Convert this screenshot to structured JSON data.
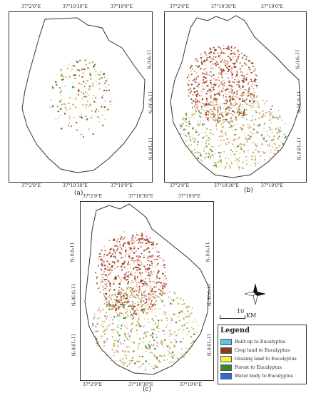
{
  "panels": [
    {
      "id": "a",
      "caption": "(a)",
      "top_ticks": [
        "37°2'0\"E",
        "37°10'30\"E",
        "37°19'0\"E"
      ],
      "bottom_ticks": [
        "37°2'0\"E",
        "37°10'30\"E",
        "37°19'0\"E"
      ],
      "right_ticks": [
        "11°9'0\"N",
        "11°0'30\"N",
        "11°18'0\"N"
      ]
    },
    {
      "id": "b",
      "caption": "(b)",
      "top_ticks": [
        "37°2'0\"E",
        "37°10'30\"E",
        "37°19'0\"E"
      ],
      "bottom_ticks": [
        "37°2'0\"E",
        "37°10'30\"E",
        "37°19'0\"E"
      ],
      "right_ticks": [
        "11°9'0\"N",
        "11°0'30\"N",
        "11°18'0\"N"
      ]
    },
    {
      "id": "c",
      "caption": "(c)",
      "top_ticks": [
        "37°2'0\"E",
        "37°10'30\"E",
        "37°19'0\"E"
      ],
      "bottom_ticks": [
        "37°2'0\"E",
        "37°10'30\"E",
        "37°19'0\"E"
      ],
      "left_ticks": [
        "11°9'0\"N",
        "11°0'30\"N",
        "11°18'0\"N"
      ],
      "right_ticks": [
        "11°9'0\"N",
        "11°0'30\"N",
        "11°18'0\"N"
      ]
    }
  ],
  "scale_bar": {
    "value": "10",
    "unit": "KM"
  },
  "legend": {
    "title": "Legend",
    "items": [
      {
        "label": "Built-up to Eucalyptus",
        "color": "#5fc7e6"
      },
      {
        "label": "Crop  land to Eucalyptus",
        "color": "#8b3a1e"
      },
      {
        "label": "Grazing land to Eucalyptus",
        "color": "#f2f24a"
      },
      {
        "label": "Forest to Eucalyptus",
        "color": "#2e8b2e"
      },
      {
        "label": "Water body to Eucalyptus",
        "color": "#2a6fd6"
      }
    ]
  },
  "colors": {
    "crop": "#a0401f",
    "crop_light": "#d9a08a",
    "grazing": "#c9b24a",
    "forest": "#3f8f3f",
    "outline": "#333333"
  },
  "north_arrow_icon": "compass-rose-icon"
}
